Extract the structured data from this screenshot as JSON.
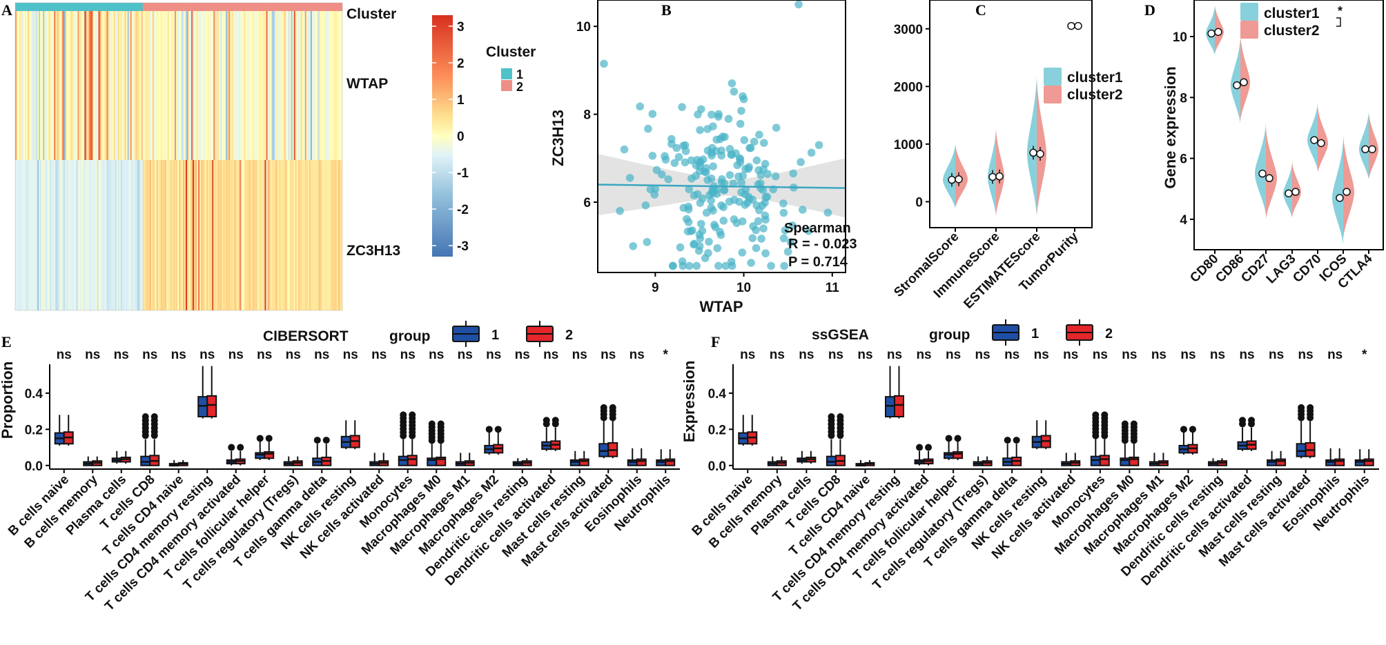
{
  "colors": {
    "cluster1": "#4ec1c9",
    "cluster2": "#ee8f86",
    "violin1": "#88d1dc",
    "violin2": "#ef9a94",
    "scatter": "#4ab3c7",
    "group1": "#1f4fa5",
    "group2": "#e2262a"
  },
  "panel_letters": [
    "A",
    "B",
    "C",
    "D",
    "E",
    "F"
  ],
  "chart_data": [
    {
      "panel": "A",
      "type": "heatmap",
      "row_labels": [
        "Cluster",
        "WTAP",
        "ZC3H13"
      ],
      "legend_title": "Cluster",
      "legend_items": [
        "1",
        "2"
      ],
      "colorbar_ticks": [
        "3",
        "2",
        "1",
        "0",
        "-1",
        "-2",
        "-3"
      ],
      "colorbar_range": [
        -3.3,
        3.3
      ]
    },
    {
      "panel": "B",
      "type": "scatter",
      "xlabel": "WTAP",
      "ylabel": "ZC3H13",
      "x_ticks": [
        "9",
        "10",
        "11"
      ],
      "y_ticks": [
        "6",
        "8",
        "10"
      ],
      "xlim": [
        8.35,
        11.15
      ],
      "ylim": [
        4.4,
        10.6
      ],
      "fit_line": {
        "x0": 8.35,
        "y0": 6.4,
        "x1": 11.15,
        "y1": 6.32
      },
      "annotation": {
        "method": "Spearman",
        "r_text": "R = - 0.023",
        "p_text": "P = 0.714"
      }
    },
    {
      "panel": "C",
      "type": "violin",
      "categories": [
        "StromalScore",
        "ImmuneScore",
        "ESTIMATEScore",
        "TumorPurity"
      ],
      "y_ticks": [
        "0",
        "1000",
        "2000",
        "3000"
      ],
      "ylim": [
        -450,
        3500
      ],
      "legend": [
        "cluster1",
        "cluster2"
      ],
      "medians": {
        "cluster1": [
          380,
          430,
          850,
          3050
        ],
        "cluster2": [
          390,
          440,
          830,
          3050
        ]
      }
    },
    {
      "panel": "D",
      "type": "violin",
      "ylabel": "Gene expression",
      "categories": [
        "CD80",
        "CD86",
        "CD27",
        "LAG3",
        "CD70",
        "ICOS",
        "CTLA4"
      ],
      "y_ticks": [
        "4",
        "6",
        "8",
        "10"
      ],
      "ylim": [
        3.0,
        11.2
      ],
      "legend": [
        "cluster1",
        "cluster2"
      ],
      "significance": "*",
      "medians": {
        "cluster1": [
          10.1,
          8.4,
          5.5,
          4.85,
          6.6,
          4.7,
          6.3
        ],
        "cluster2": [
          10.15,
          8.5,
          5.35,
          4.9,
          6.5,
          4.9,
          6.3
        ]
      }
    },
    {
      "panel": "E",
      "type": "box",
      "title": "CIBERSORT",
      "ylabel": "Proportion",
      "legend_title": "group",
      "groups": [
        "1",
        "2"
      ],
      "y_ticks": [
        "0.0",
        "0.2",
        "0.4"
      ],
      "ylim": [
        -0.02,
        0.56
      ],
      "categories": [
        "B cells naive",
        "B cells memory",
        "Plasma cells",
        "T cells CD8",
        "T cells CD4 naive",
        "T cells CD4 memory resting",
        "T cells CD4 memory activated",
        "T cells follicular helper",
        "T cells regulatory (Tregs)",
        "T cells gamma delta",
        "NK cells resting",
        "NK cells activated",
        "Monocytes",
        "Macrophages M0",
        "Macrophages M1",
        "Macrophages M2",
        "Dendritic cells resting",
        "Dendritic cells activated",
        "Mast cells resting",
        "Mast cells activated",
        "Eosinophils",
        "Neutrophils"
      ],
      "significance": [
        "ns",
        "ns",
        "ns",
        "ns",
        "ns",
        "ns",
        "ns",
        "ns",
        "ns",
        "ns",
        "ns",
        "ns",
        "ns",
        "ns",
        "ns",
        "ns",
        "ns",
        "ns",
        "ns",
        "ns",
        "ns",
        "*"
      ],
      "medians": [
        0.15,
        0.01,
        0.03,
        0.02,
        0.005,
        0.33,
        0.02,
        0.06,
        0.01,
        0.02,
        0.13,
        0.01,
        0.03,
        0.03,
        0.01,
        0.09,
        0.01,
        0.11,
        0.02,
        0.08,
        0.02,
        0.02
      ],
      "q1": [
        0.12,
        0.0,
        0.02,
        0.0,
        0.0,
        0.27,
        0.01,
        0.04,
        0.0,
        0.0,
        0.1,
        0.0,
        0.0,
        0.0,
        0.0,
        0.07,
        0.0,
        0.09,
        0.0,
        0.05,
        0.0,
        0.0
      ],
      "q3": [
        0.18,
        0.02,
        0.04,
        0.05,
        0.01,
        0.38,
        0.03,
        0.07,
        0.02,
        0.04,
        0.16,
        0.02,
        0.05,
        0.04,
        0.02,
        0.11,
        0.02,
        0.13,
        0.03,
        0.12,
        0.03,
        0.03
      ],
      "maxima": [
        0.28,
        0.05,
        0.08,
        0.27,
        0.03,
        0.55,
        0.1,
        0.15,
        0.05,
        0.14,
        0.25,
        0.08,
        0.28,
        0.23,
        0.08,
        0.2,
        0.04,
        0.25,
        0.08,
        0.32,
        0.1,
        0.09
      ]
    },
    {
      "panel": "F",
      "type": "box",
      "title": "ssGSEA",
      "ylabel": "Expression",
      "legend_title": "group",
      "groups": [
        "1",
        "2"
      ],
      "y_ticks": [
        "0.0",
        "0.2",
        "0.4"
      ],
      "ylim": [
        -0.02,
        0.56
      ],
      "categories": [
        "B cells naive",
        "B cells memory",
        "Plasma cells",
        "T cells CD8",
        "T cells CD4 naive",
        "T cells CD4 memory resting",
        "T cells CD4 memory activated",
        "T cells follicular helper",
        "T cells regulatory (Tregs)",
        "T cells gamma delta",
        "NK cells resting",
        "NK cells activated",
        "Monocytes",
        "Macrophages M0",
        "Macrophages M1",
        "Macrophages M2",
        "Dendritic cells resting",
        "Dendritic cells activated",
        "Mast cells resting",
        "Mast cells activated",
        "Eosinophils",
        "Neutrophils"
      ],
      "significance": [
        "ns",
        "ns",
        "ns",
        "ns",
        "ns",
        "ns",
        "ns",
        "ns",
        "ns",
        "ns",
        "ns",
        "ns",
        "ns",
        "ns",
        "ns",
        "ns",
        "ns",
        "ns",
        "ns",
        "ns",
        "ns",
        "*"
      ],
      "medians": [
        0.15,
        0.01,
        0.03,
        0.02,
        0.005,
        0.33,
        0.02,
        0.06,
        0.01,
        0.02,
        0.13,
        0.01,
        0.03,
        0.03,
        0.01,
        0.09,
        0.01,
        0.11,
        0.02,
        0.08,
        0.02,
        0.02
      ],
      "q1": [
        0.12,
        0.0,
        0.02,
        0.0,
        0.0,
        0.27,
        0.01,
        0.04,
        0.0,
        0.0,
        0.1,
        0.0,
        0.0,
        0.0,
        0.0,
        0.07,
        0.0,
        0.09,
        0.0,
        0.05,
        0.0,
        0.0
      ],
      "q3": [
        0.18,
        0.02,
        0.04,
        0.05,
        0.01,
        0.38,
        0.03,
        0.07,
        0.02,
        0.04,
        0.16,
        0.02,
        0.05,
        0.04,
        0.02,
        0.11,
        0.02,
        0.13,
        0.03,
        0.12,
        0.03,
        0.03
      ],
      "maxima": [
        0.28,
        0.05,
        0.08,
        0.27,
        0.03,
        0.55,
        0.1,
        0.15,
        0.05,
        0.14,
        0.25,
        0.08,
        0.28,
        0.23,
        0.08,
        0.2,
        0.04,
        0.25,
        0.08,
        0.32,
        0.1,
        0.09
      ]
    }
  ]
}
